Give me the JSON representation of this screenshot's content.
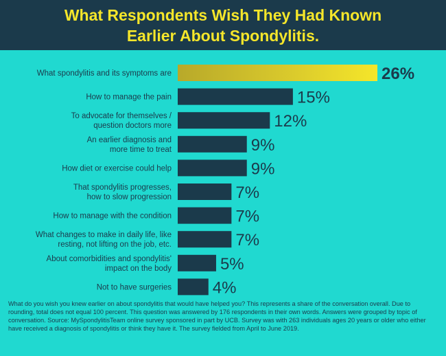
{
  "header": {
    "title_line1": "What Respondents Wish They Had Known",
    "title_line2": "Earlier About Spondylitis."
  },
  "colors": {
    "background": "#20d9d0",
    "header_bg": "#1b3a4b",
    "title": "#f5e62a",
    "bar": "#1b3a4b",
    "highlight_bar": "#f5e62a",
    "text": "#1b3a4b"
  },
  "chart_data": {
    "type": "bar",
    "orientation": "horizontal",
    "categories": [
      [
        "What spondylitis and its symptoms are"
      ],
      [
        "How to manage the pain"
      ],
      [
        "To advocate for themselves /",
        "question doctors more"
      ],
      [
        "An earlier diagnosis and",
        "more time to treat"
      ],
      [
        "How diet or exercise could help"
      ],
      [
        "That spondylitis progresses,",
        "how to slow progression"
      ],
      [
        "How to manage with the condition"
      ],
      [
        "What changes to make in daily life, like",
        "resting, not lifting on the job, etc."
      ],
      [
        "About comorbidities and spondylitis'",
        "impact on the body"
      ],
      [
        "Not to have surgeries"
      ]
    ],
    "values": [
      26,
      15,
      12,
      9,
      9,
      7,
      7,
      7,
      5,
      4
    ],
    "value_labels": [
      "26%",
      "15%",
      "12%",
      "9%",
      "9%",
      "7%",
      "7%",
      "7%",
      "5%",
      "4%"
    ],
    "highlight_index": 0,
    "xlim": [
      0,
      26
    ],
    "grid": false,
    "legend": "none"
  },
  "footnote": "What do you wish you knew earlier on about spondylitis that would have helped you? This represents a share of the conversation overall. Due to rounding, total does not equal 100 percent. This question was answered by 176 respondents in their own words. Answers were grouped by topic of conversation. Source: MySpondylitisTeam online survey sponsored in part by UCB. Survey was with 263 individuals ages 20 years or older who either have received a diagnosis of spondylitis or think they have it. The survey fielded from April to June 2019."
}
